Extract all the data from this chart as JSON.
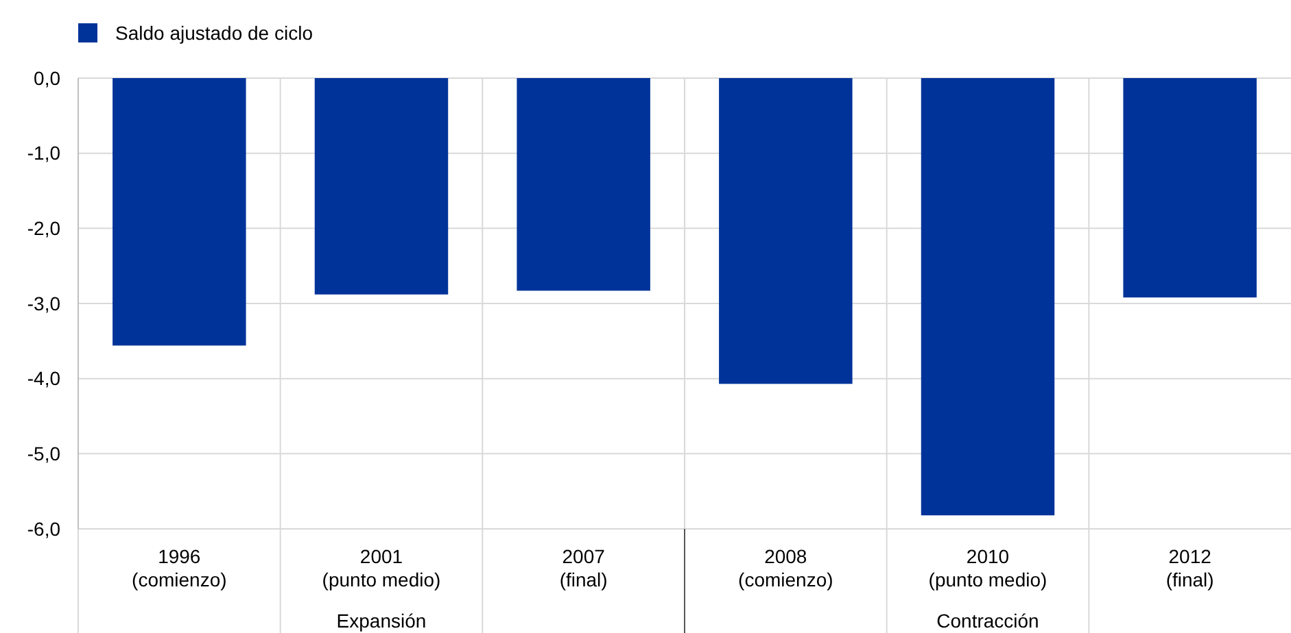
{
  "chart_data": {
    "type": "bar",
    "categories": [
      "1996\n(comienzo)",
      "2001\n(punto medio)",
      "2007\n(final)",
      "2008\n(comienzo)",
      "2010\n(punto medio)",
      "2012\n(final)"
    ],
    "series": [
      {
        "name": "Saldo ajustado de ciclo",
        "color": "#003399",
        "values": [
          -3.56,
          -2.88,
          -2.83,
          -4.07,
          -5.82,
          -2.92
        ]
      }
    ],
    "ylim": [
      -6,
      0
    ],
    "yticks": [
      {
        "value": 0,
        "label": "0,0"
      },
      {
        "value": -1,
        "label": "-1,0"
      },
      {
        "value": -2,
        "label": "-2,0"
      },
      {
        "value": -3,
        "label": "-3,0"
      },
      {
        "value": -4,
        "label": "-4,0"
      },
      {
        "value": -5,
        "label": "-5,0"
      },
      {
        "value": -6,
        "label": "-6,0"
      }
    ],
    "grid": true,
    "legend": "top left",
    "annotations": [
      "Expansión",
      "Contracción"
    ]
  }
}
